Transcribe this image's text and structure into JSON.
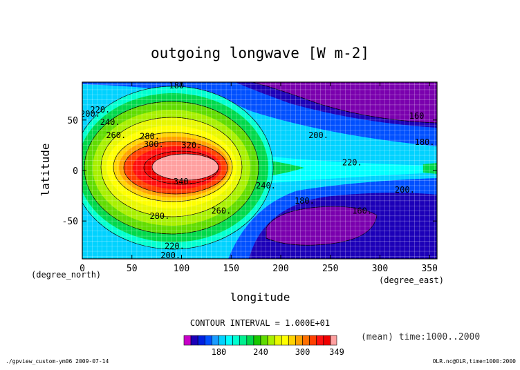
{
  "chart_data": {
    "type": "heatmap",
    "title": "outgoing longwave [W m-2]",
    "xlabel": "longitude",
    "ylabel": "latitude",
    "x_unit_label": "(degree_east)",
    "y_unit_label": "(degree_north)",
    "xlim": [
      0,
      357.5
    ],
    "ylim": [
      -87.5,
      87.5
    ],
    "x_ticks": [
      0,
      50,
      100,
      150,
      200,
      250,
      300,
      350
    ],
    "y_ticks": [
      -50,
      0,
      50
    ],
    "grid": true,
    "contour_interval_label": "CONTOUR INTERVAL = 1.000E+01",
    "time_label": "(mean) time:1000..2000",
    "colorbar": {
      "levels": [
        130,
        140,
        150,
        160,
        170,
        180,
        190,
        200,
        210,
        220,
        230,
        240,
        250,
        260,
        270,
        280,
        290,
        300,
        310,
        320,
        330,
        340,
        349
      ],
      "tick_labels": [
        "180",
        "240",
        "300",
        "349"
      ],
      "colors": [
        "#c800c8",
        "#1c00b8",
        "#0020e0",
        "#0050ff",
        "#1a9cff",
        "#00d2ff",
        "#00ffff",
        "#00ffd0",
        "#00f090",
        "#00d84a",
        "#18c800",
        "#60dc00",
        "#a8f000",
        "#e8f800",
        "#ffff00",
        "#ffd200",
        "#ffa000",
        "#ff7000",
        "#ff4000",
        "#ff1010",
        "#f00000",
        "#ffa0a0"
      ]
    },
    "contour_labels": [
      {
        "x": 95,
        "y": 84,
        "text": "180"
      },
      {
        "x": 337,
        "y": 54,
        "text": "160"
      },
      {
        "x": 8,
        "y": 56,
        "text": "200."
      },
      {
        "x": 18,
        "y": 60,
        "text": "220."
      },
      {
        "x": 28,
        "y": 48,
        "text": "240."
      },
      {
        "x": 34,
        "y": 35,
        "text": "260."
      },
      {
        "x": 68,
        "y": 34,
        "text": "280."
      },
      {
        "x": 72,
        "y": 26,
        "text": "300."
      },
      {
        "x": 110,
        "y": 25,
        "text": "320."
      },
      {
        "x": 102,
        "y": -11,
        "text": "340."
      },
      {
        "x": 238,
        "y": 35,
        "text": "200."
      },
      {
        "x": 345,
        "y": 28,
        "text": "180."
      },
      {
        "x": 272,
        "y": 8,
        "text": "220."
      },
      {
        "x": 185,
        "y": -15,
        "text": "240."
      },
      {
        "x": 140,
        "y": -40,
        "text": "260."
      },
      {
        "x": 78,
        "y": -45,
        "text": "280."
      },
      {
        "x": 224,
        "y": -30,
        "text": "180."
      },
      {
        "x": 325,
        "y": -19,
        "text": "200."
      },
      {
        "x": 282,
        "y": -40,
        "text": "160."
      },
      {
        "x": 93,
        "y": -75,
        "text": "220."
      },
      {
        "x": 89,
        "y": -84,
        "text": "200."
      }
    ]
  },
  "footer": {
    "left": "./gpview_custom-ym06 2009-07-14",
    "right": "OLR.nc@OLR,time=1000:2000"
  }
}
